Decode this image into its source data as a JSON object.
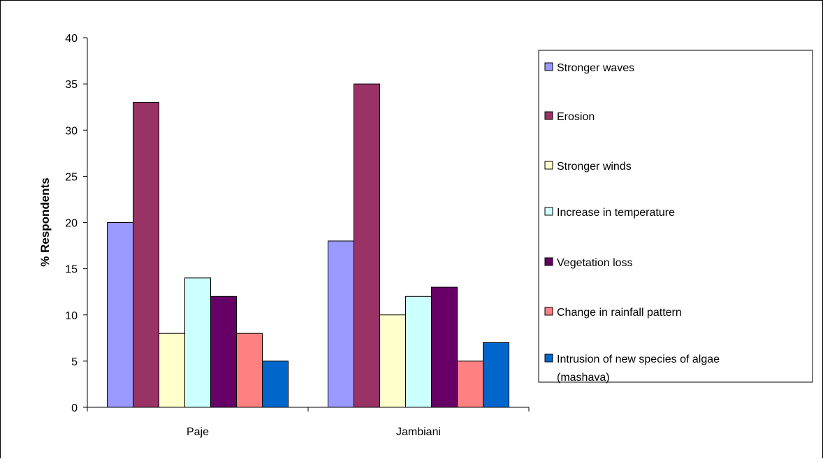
{
  "chart_data": {
    "type": "bar",
    "title": "",
    "xlabel": "",
    "ylabel": "% Respondents",
    "ylim": [
      0,
      40
    ],
    "yticks": [
      0,
      5,
      10,
      15,
      20,
      25,
      30,
      35,
      40
    ],
    "categories": [
      "Paje",
      "Jambiani"
    ],
    "series": [
      {
        "name": "Stronger waves",
        "color": "#9999ff",
        "values": [
          20,
          18
        ]
      },
      {
        "name": "Erosion",
        "color": "#993366",
        "values": [
          33,
          35
        ]
      },
      {
        "name": "Stronger winds",
        "color": "#ffffcc",
        "values": [
          8,
          10
        ]
      },
      {
        "name": "Increase in temperature",
        "color": "#ccffff",
        "values": [
          14,
          12
        ]
      },
      {
        "name": "Vegetation loss",
        "color": "#660066",
        "values": [
          12,
          13
        ]
      },
      {
        "name": "Change in rainfall pattern",
        "color": "#ff8080",
        "values": [
          8,
          5
        ]
      },
      {
        "name": "Intrusion of new species of algae (mashava)",
        "legend_lines": [
          "Intrusion of new species of algae",
          "(mashava)"
        ],
        "color": "#0066cc",
        "values": [
          5,
          7
        ]
      }
    ],
    "grid": false,
    "legend_position": "right"
  }
}
